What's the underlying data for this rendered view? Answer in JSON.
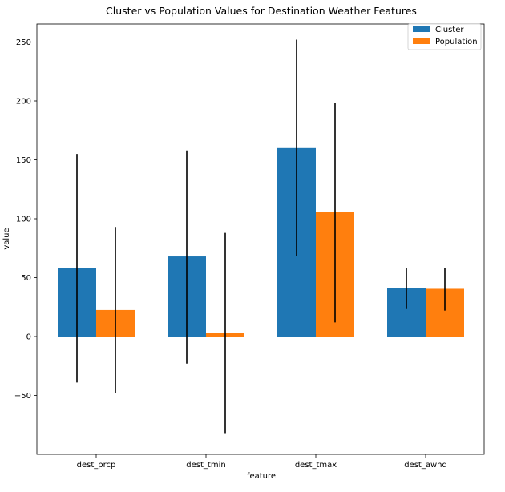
{
  "chart_data": {
    "type": "bar",
    "title": "Cluster vs Population Values for Destination Weather Features",
    "xlabel": "feature",
    "ylabel": "value",
    "categories": [
      "dest_prcp",
      "dest_tmin",
      "dest_tmax",
      "dest_awnd"
    ],
    "series": [
      {
        "name": "Cluster",
        "color": "#1f77b4",
        "values": [
          58.5,
          68.0,
          160.0,
          41.0
        ],
        "error_low": [
          -39,
          -23,
          68,
          24
        ],
        "error_high": [
          155,
          158,
          252,
          58
        ]
      },
      {
        "name": "Population",
        "color": "#ff7f0e",
        "values": [
          22.5,
          3.0,
          105.5,
          40.5
        ],
        "error_low": [
          -48,
          -82,
          12,
          22
        ],
        "error_high": [
          93,
          88,
          198,
          58
        ]
      }
    ],
    "yticks": [
      -50,
      0,
      50,
      100,
      150,
      200,
      250
    ],
    "ytick_labels": [
      "−50",
      "0",
      "50",
      "100",
      "150",
      "200",
      "250"
    ],
    "ylim": [
      -100,
      270
    ],
    "grid": false,
    "legend_position": "top-right",
    "error_bar_color": "#000000"
  }
}
